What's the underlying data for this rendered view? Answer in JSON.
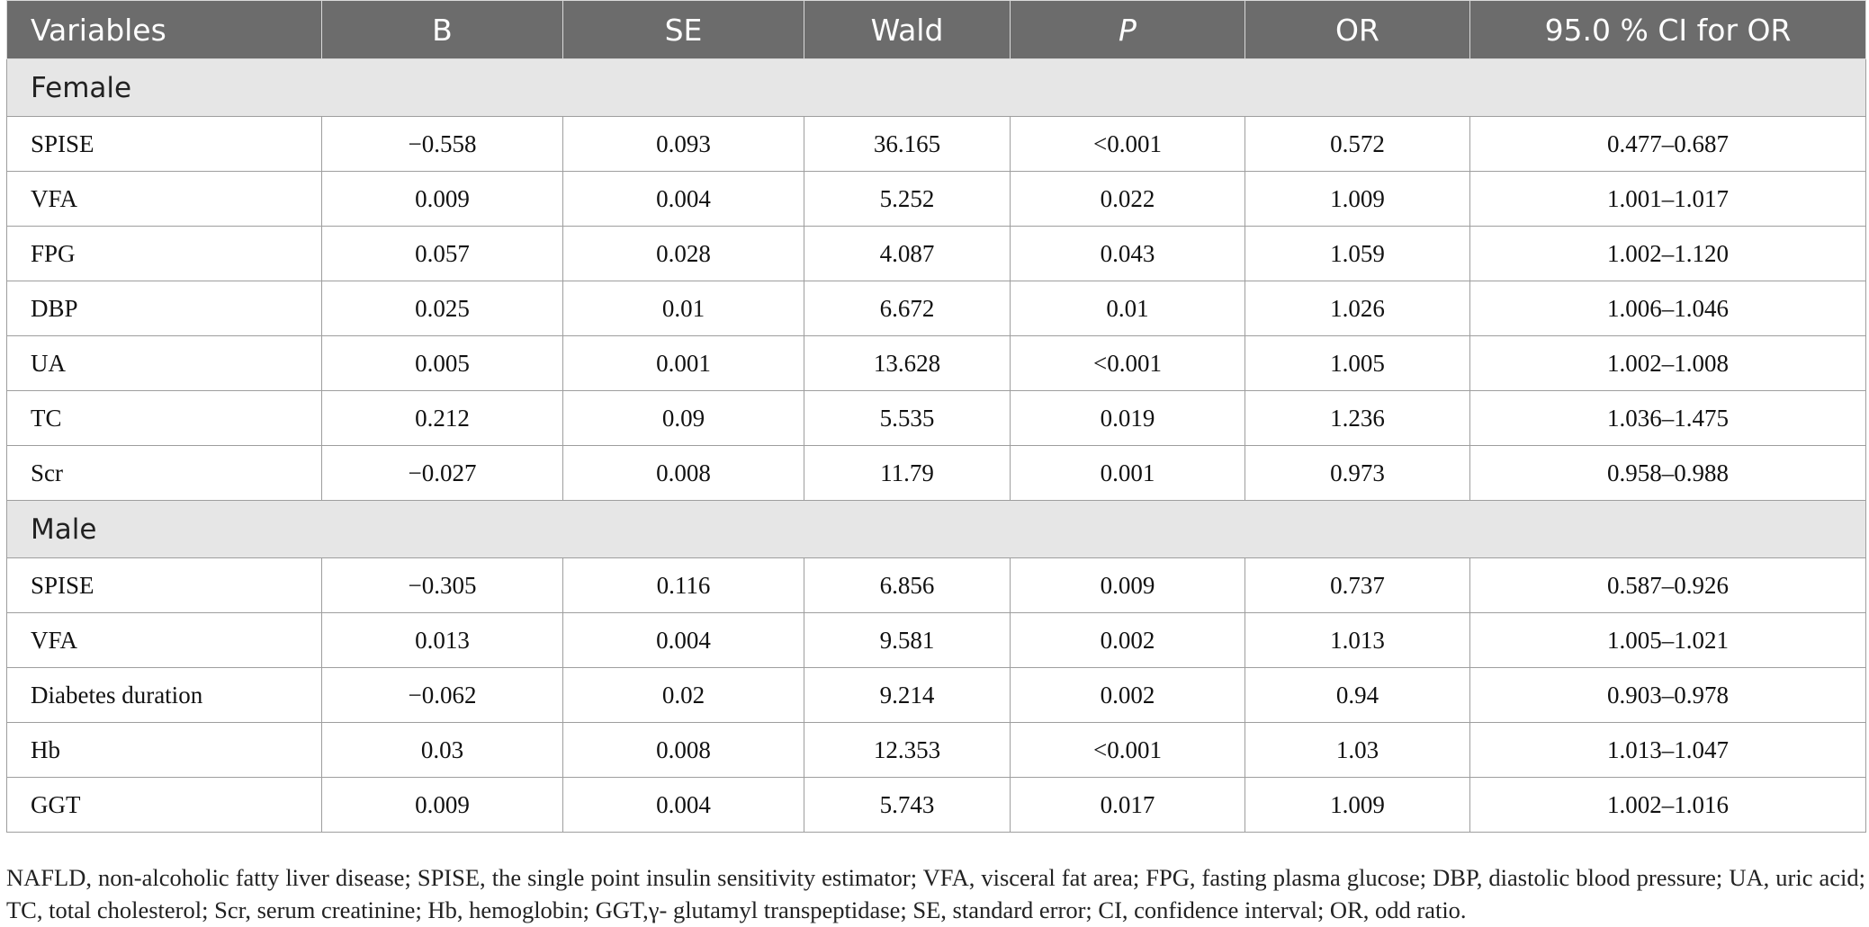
{
  "columns": [
    "Variables",
    "B",
    "SE",
    "Wald",
    "P",
    "OR",
    "95.0 % CI for OR"
  ],
  "groups": [
    {
      "name": "Female",
      "rows": [
        [
          "SPISE",
          "−0.558",
          "0.093",
          "36.165",
          "<0.001",
          "0.572",
          "0.477–0.687"
        ],
        [
          "VFA",
          "0.009",
          "0.004",
          "5.252",
          "0.022",
          "1.009",
          "1.001–1.017"
        ],
        [
          "FPG",
          "0.057",
          "0.028",
          "4.087",
          "0.043",
          "1.059",
          "1.002–1.120"
        ],
        [
          "DBP",
          "0.025",
          "0.01",
          "6.672",
          "0.01",
          "1.026",
          "1.006–1.046"
        ],
        [
          "UA",
          "0.005",
          "0.001",
          "13.628",
          "<0.001",
          "1.005",
          "1.002–1.008"
        ],
        [
          "TC",
          "0.212",
          "0.09",
          "5.535",
          "0.019",
          "1.236",
          "1.036–1.475"
        ],
        [
          "Scr",
          "−0.027",
          "0.008",
          "11.79",
          "0.001",
          "0.973",
          "0.958–0.988"
        ]
      ]
    },
    {
      "name": "Male",
      "rows": [
        [
          "SPISE",
          "−0.305",
          "0.116",
          "6.856",
          "0.009",
          "0.737",
          "0.587–0.926"
        ],
        [
          "VFA",
          "0.013",
          "0.004",
          "9.581",
          "0.002",
          "1.013",
          "1.005–1.021"
        ],
        [
          "Diabetes duration",
          "−0.062",
          "0.02",
          "9.214",
          "0.002",
          "0.94",
          "0.903–0.978"
        ],
        [
          "Hb",
          "0.03",
          "0.008",
          "12.353",
          "<0.001",
          "1.03",
          "1.013–1.047"
        ],
        [
          "GGT",
          "0.009",
          "0.004",
          "5.743",
          "0.017",
          "1.009",
          "1.002–1.016"
        ]
      ]
    }
  ],
  "footnote": "NAFLD, non-alcoholic fatty liver disease; SPISE, the single point insulin sensitivity estimator; VFA, visceral fat area; FPG, fasting plasma glucose; DBP, diastolic blood pressure; UA, uric acid; TC, total cholesterol; Scr, serum creatinine; Hb, hemoglobin; GGT,γ- glutamyl transpeptidase; SE, standard error; CI, confidence interval; OR, odd ratio."
}
